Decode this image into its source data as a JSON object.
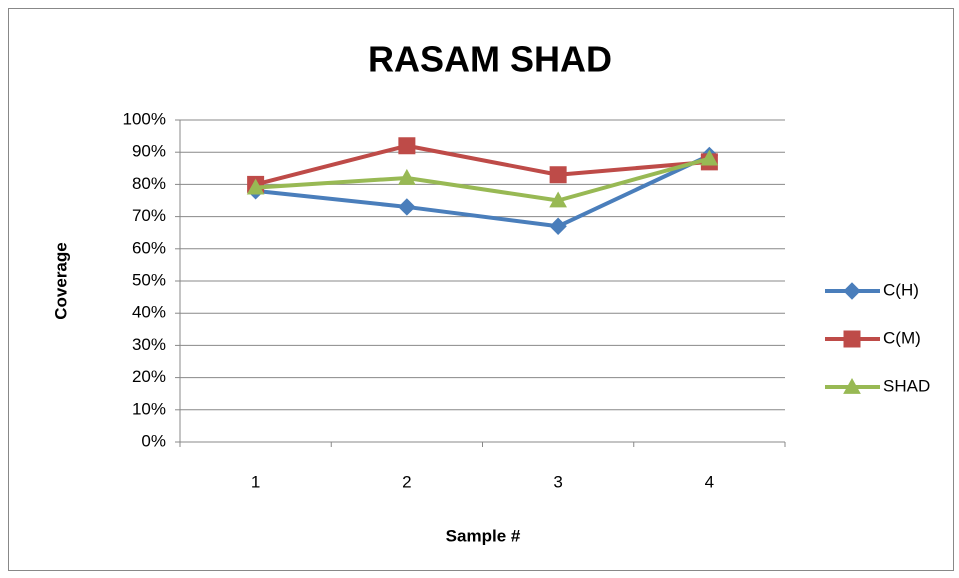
{
  "chart_data": {
    "type": "line",
    "title": "RASAM SHAD",
    "x_label": "Sample #",
    "y_label": "Coverage",
    "categories": [
      "1",
      "2",
      "3",
      "4"
    ],
    "series": [
      {
        "name": "C(H)",
        "color": "#4a7ebb",
        "marker": "diamond",
        "values": [
          78,
          73,
          67,
          89
        ]
      },
      {
        "name": "C(M)",
        "color": "#be4b48",
        "marker": "square",
        "values": [
          80,
          92,
          83,
          87
        ]
      },
      {
        "name": "SHAD",
        "color": "#98b954",
        "marker": "triangle",
        "values": [
          79,
          82,
          75,
          88
        ]
      }
    ],
    "ylim": [
      0,
      100
    ],
    "yticks": [
      {
        "value": 0,
        "label": "0%"
      },
      {
        "value": 10,
        "label": "10%"
      },
      {
        "value": 20,
        "label": "20%"
      },
      {
        "value": 30,
        "label": "30%"
      },
      {
        "value": 40,
        "label": "40%"
      },
      {
        "value": 50,
        "label": "50%"
      },
      {
        "value": 60,
        "label": "60%"
      },
      {
        "value": 70,
        "label": "70%"
      },
      {
        "value": 80,
        "label": "80%"
      },
      {
        "value": 90,
        "label": "90%"
      },
      {
        "value": 100,
        "label": "100%"
      }
    ],
    "grid": true,
    "legend": "right"
  }
}
